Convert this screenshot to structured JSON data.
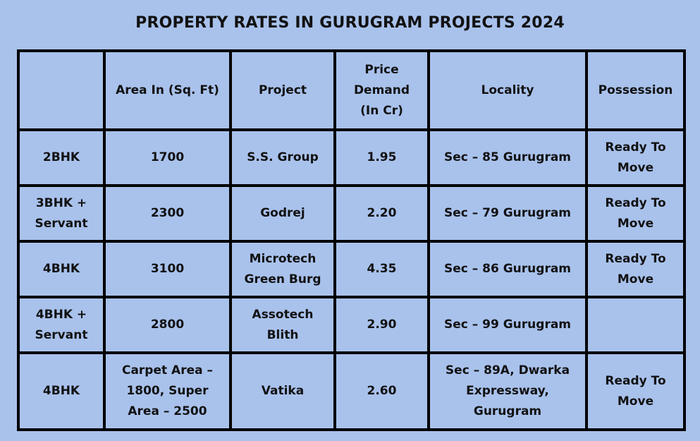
{
  "title": "PROPERTY RATES IN GURUGRAM PROJECTS 2024",
  "table": {
    "headers": [
      "",
      "Area In (Sq. Ft)",
      "Project",
      "Price Demand (In Cr)",
      "Locality",
      "Possession"
    ],
    "rows": [
      [
        "2BHK",
        "1700",
        "S.S. Group",
        "1.95",
        "Sec – 85 Gurugram",
        "Ready To Move"
      ],
      [
        "3BHK + Servant",
        "2300",
        "Godrej",
        "2.20",
        "Sec – 79 Gurugram",
        "Ready To Move"
      ],
      [
        "4BHK",
        "3100",
        "Microtech Green Burg",
        "4.35",
        "Sec – 86 Gurugram",
        "Ready To Move"
      ],
      [
        "4BHK + Servant",
        "2800",
        "Assotech Blith",
        "2.90",
        "Sec – 99 Gurugram",
        ""
      ],
      [
        "4BHK",
        "Carpet Area – 1800, Super Area – 2500",
        "Vatika",
        "2.60",
        "Sec – 89A, Dwarka Expressway, Gurugram",
        "Ready To Move"
      ]
    ]
  },
  "colors": {
    "background": "#a9c2ec",
    "grid": "#000000",
    "text": "#111111"
  }
}
